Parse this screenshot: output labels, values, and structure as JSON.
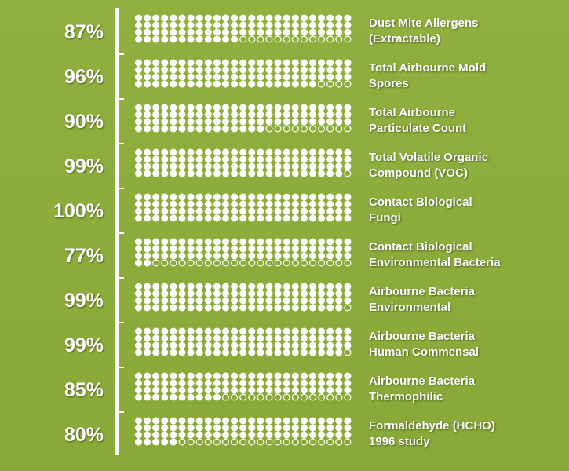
{
  "colors": {
    "background": "#8aab3a",
    "dot_filled": "#ffffff",
    "dot_empty_outline": "#ffffff",
    "text": "#ffffff"
  },
  "chart_data": {
    "type": "waffle",
    "dots_per_row": 25,
    "dots_total": 100,
    "categories": [
      {
        "label_lines": [
          "Dust Mite Allergens",
          "(Extractable)"
        ],
        "value": 87,
        "value_label": "87%"
      },
      {
        "label_lines": [
          "Total Airbourne Mold",
          "Spores"
        ],
        "value": 96,
        "value_label": "96%"
      },
      {
        "label_lines": [
          "Total Airbourne",
          "Particulate Count"
        ],
        "value": 90,
        "value_label": "90%"
      },
      {
        "label_lines": [
          "Total Volatile Organic",
          "Compound (VOC)"
        ],
        "value": 99,
        "value_label": "99%"
      },
      {
        "label_lines": [
          "Contact Biological",
          "Fungi"
        ],
        "value": 100,
        "value_label": "100%"
      },
      {
        "label_lines": [
          "Contact Biological",
          "Environmental Bacteria"
        ],
        "value": 77,
        "value_label": "77%"
      },
      {
        "label_lines": [
          "Airbourne Bacteria",
          "Environmental"
        ],
        "value": 99,
        "value_label": "99%"
      },
      {
        "label_lines": [
          "Airbourne Bacteria",
          "Human Commensal"
        ],
        "value": 99,
        "value_label": "99%"
      },
      {
        "label_lines": [
          "Airbourne Bacteria",
          "Thermophilic"
        ],
        "value": 85,
        "value_label": "85%"
      },
      {
        "label_lines": [
          "Formaldehyde (HCHO)",
          "1996 study"
        ],
        "value": 80,
        "value_label": "80%"
      }
    ],
    "grid": false,
    "legend": "none"
  }
}
